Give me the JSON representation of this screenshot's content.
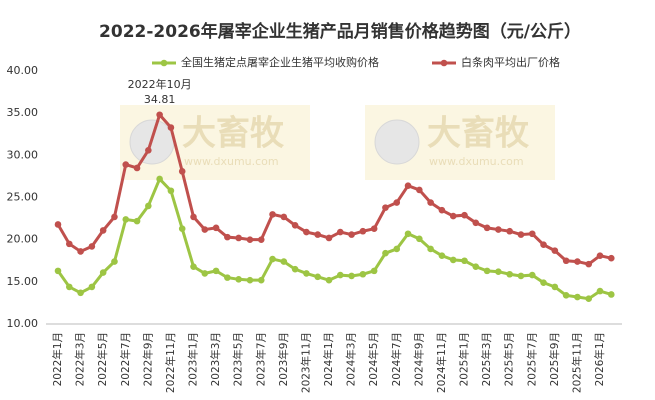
{
  "chart_data": {
    "type": "line",
    "title": "2022-2026年屠宰企业生猪产品月销售价格趋势图（元/公斤）",
    "categories": [
      "2022年1月",
      null,
      "2022年3月",
      null,
      "2022年5月",
      null,
      "2022年7月",
      null,
      "2022年9月",
      null,
      "2022年11月",
      null,
      "2023年1月",
      null,
      "2023年3月",
      null,
      "2023年5月",
      null,
      "2023年7月",
      null,
      "2023年9月",
      null,
      "2023年11月",
      null,
      "2024年1月",
      null,
      "2024年3月",
      null,
      "2024年5月",
      null,
      "2024年7月",
      null,
      "2024年9月",
      null,
      "2024年11月",
      null,
      "2025年1月",
      null,
      "2025年3月",
      null,
      "2025年5月",
      null,
      "2025年7月",
      null,
      "2025年9月",
      null,
      "2025年11月",
      null,
      "2026年1月",
      null
    ],
    "series": [
      {
        "name": "全国生猪定点屠宰企业生猪平均收购价格",
        "color": "#9dc544",
        "values": [
          16.3,
          14.4,
          13.7,
          14.4,
          16.1,
          17.4,
          22.4,
          22.2,
          24.0,
          27.2,
          25.8,
          21.3,
          16.8,
          16.0,
          16.3,
          15.5,
          15.3,
          15.2,
          15.2,
          17.7,
          17.4,
          16.5,
          16.0,
          15.6,
          15.2,
          15.8,
          15.7,
          15.9,
          16.3,
          18.4,
          18.9,
          20.7,
          20.1,
          18.9,
          18.1,
          17.6,
          17.5,
          16.8,
          16.3,
          16.2,
          15.9,
          15.7,
          15.8,
          14.9,
          14.4,
          13.4,
          13.2,
          13.0,
          13.9,
          13.5
        ]
      },
      {
        "name": "白条肉平均出厂价格",
        "color": "#c0504d",
        "values": [
          21.8,
          19.5,
          18.6,
          19.2,
          21.1,
          22.7,
          28.9,
          28.5,
          30.6,
          34.81,
          33.3,
          28.1,
          22.7,
          21.2,
          21.4,
          20.3,
          20.2,
          20.0,
          20.0,
          23.0,
          22.7,
          21.7,
          20.9,
          20.6,
          20.2,
          20.9,
          20.6,
          21.0,
          21.3,
          23.8,
          24.4,
          26.4,
          25.9,
          24.4,
          23.5,
          22.8,
          22.9,
          22.0,
          21.4,
          21.2,
          21.0,
          20.6,
          20.7,
          19.4,
          18.7,
          17.5,
          17.4,
          17.1,
          18.1,
          17.8
        ]
      }
    ],
    "annotations": [
      {
        "text": "2022年10月",
        "series": 1,
        "index": 9
      }
    ],
    "ylim": [
      10,
      40
    ],
    "yticks": [
      {
        "value": 10,
        "label": "10.00"
      },
      {
        "value": 15,
        "label": "15.00"
      },
      {
        "value": 20,
        "label": "20.00"
      },
      {
        "value": 25,
        "label": "25.00"
      },
      {
        "value": 30,
        "label": "30.00"
      },
      {
        "value": 35,
        "label": "35.00"
      },
      {
        "value": 40,
        "label": "40.00"
      }
    ],
    "grid": false,
    "legend": "top",
    "watermark": {
      "brand": "大畜牧",
      "url": "www.dxumu.com"
    }
  }
}
